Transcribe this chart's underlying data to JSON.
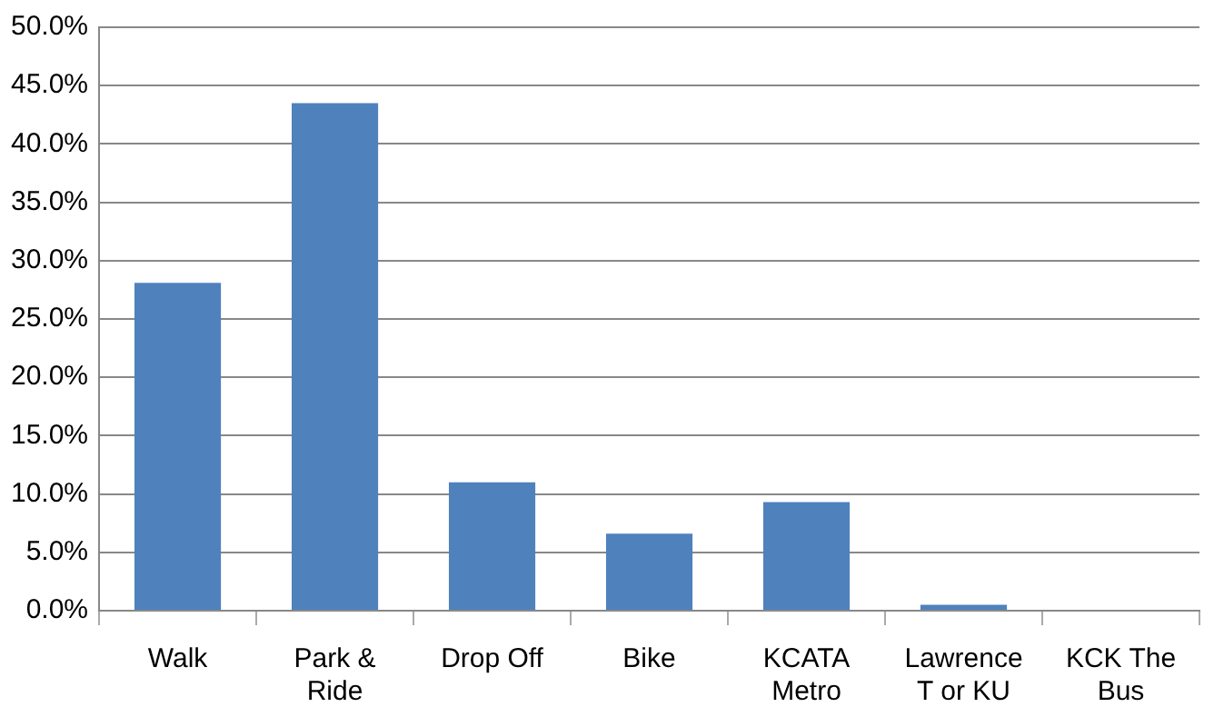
{
  "chart_data": {
    "type": "bar",
    "categories": [
      "Walk",
      "Park & Ride",
      "Drop Off",
      "Bike",
      "KCATA Metro",
      "Lawrence T or KU",
      "KCK The Bus"
    ],
    "values": [
      28.1,
      43.5,
      11.0,
      6.6,
      9.3,
      0.5,
      0
    ],
    "color": "#4f81bd",
    "ylim": [
      0,
      50
    ],
    "yticks": [
      {
        "value": 0,
        "label": "0.0%"
      },
      {
        "value": 5,
        "label": "5.0%"
      },
      {
        "value": 10,
        "label": "10.0%"
      },
      {
        "value": 15,
        "label": "15.0%"
      },
      {
        "value": 20,
        "label": "20.0%"
      },
      {
        "value": 25,
        "label": "25.0%"
      },
      {
        "value": 30,
        "label": "30.0%"
      },
      {
        "value": 35,
        "label": "35.0%"
      },
      {
        "value": 40,
        "label": "40.0%"
      },
      {
        "value": 45,
        "label": "45.0%"
      },
      {
        "value": 50,
        "label": "50.0%"
      }
    ],
    "grid": "y",
    "legend": false
  }
}
